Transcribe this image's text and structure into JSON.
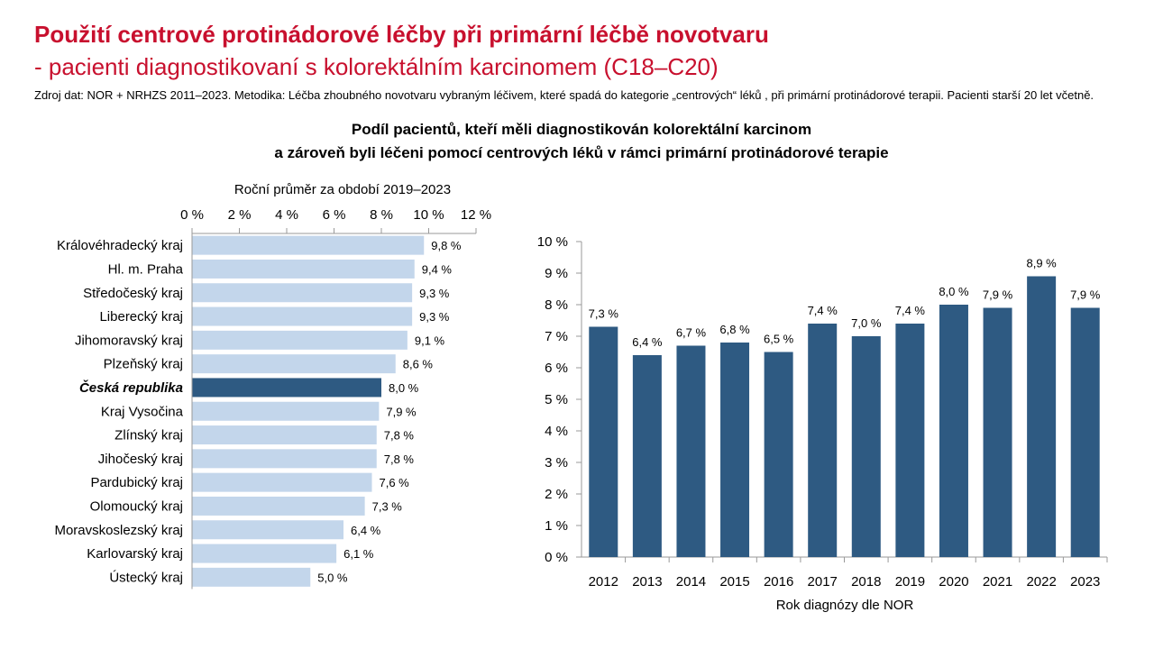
{
  "header": {
    "title": "Použití centrové protinádorové léčby při primární léčbě novotvaru",
    "subtitle": "- pacienti diagnostikovaní s kolorektálním karcinomem (C18–C20)",
    "source": "Zdroj dat: NOR + NRHZS 2011–2023. Metodika: Léčba zhoubného novotvaru vybraným léčivem, které spadá do kategorie „centrových“ léků , při primární protinádorové terapii. Pacienti starší 20 let včetně."
  },
  "chart_header": {
    "line1": "Podíl pacientů, kteří měli diagnostikován kolorektální karcinom",
    "line2": "a zároveň byli léčeni pomocí centrových léků v rámci primární protinádorové terapie"
  },
  "colors": {
    "light_bar": "#c3d6eb",
    "dark_bar": "#2e5a82",
    "title": "#c8102e"
  },
  "chart_data": [
    {
      "type": "bar",
      "orientation": "horizontal",
      "title": "Roční průměr za období 2019–2023",
      "xlim": [
        0,
        12
      ],
      "x_ticks": [
        "0 %",
        "2 %",
        "4 %",
        "6 %",
        "8 %",
        "10 %",
        "12 %"
      ],
      "highlight": "Česká republika",
      "categories": [
        "Královéhradecký kraj",
        "Hl. m. Praha",
        "Středočeský kraj",
        "Liberecký kraj",
        "Jihomoravský kraj",
        "Plzeňský kraj",
        "Česká republika",
        "Kraj Vysočina",
        "Zlínský kraj",
        "Jihočeský kraj",
        "Pardubický kraj",
        "Olomoucký kraj",
        "Moravskoslezský kraj",
        "Karlovarský kraj",
        "Ústecký kraj"
      ],
      "values": [
        9.8,
        9.4,
        9.3,
        9.3,
        9.1,
        8.6,
        8.0,
        7.9,
        7.8,
        7.8,
        7.6,
        7.3,
        6.4,
        6.1,
        5.0
      ],
      "labels": [
        "9,8 %",
        "9,4 %",
        "9,3 %",
        "9,3 %",
        "9,1 %",
        "8,6 %",
        "8,0 %",
        "7,9 %",
        "7,8 %",
        "7,8 %",
        "7,6 %",
        "7,3 %",
        "6,4 %",
        "6,1 %",
        "5,0 %"
      ]
    },
    {
      "type": "bar",
      "xlabel": "Rok diagnózy dle NOR",
      "ylim": [
        0,
        10
      ],
      "y_ticks": [
        "0 %",
        "1 %",
        "2 %",
        "3 %",
        "4 %",
        "5 %",
        "6 %",
        "7 %",
        "8 %",
        "9 %",
        "10 %"
      ],
      "categories": [
        "2012",
        "2013",
        "2014",
        "2015",
        "2016",
        "2017",
        "2018",
        "2019",
        "2020",
        "2021",
        "2022",
        "2023"
      ],
      "values": [
        7.3,
        6.4,
        6.7,
        6.8,
        6.5,
        7.4,
        7.0,
        7.4,
        8.0,
        7.9,
        8.9,
        7.9
      ],
      "labels": [
        "7,3 %",
        "6,4 %",
        "6,7 %",
        "6,8 %",
        "6,5 %",
        "7,4 %",
        "7,0 %",
        "7,4 %",
        "8,0 %",
        "7,9 %",
        "8,9 %",
        "7,9 %"
      ]
    }
  ]
}
